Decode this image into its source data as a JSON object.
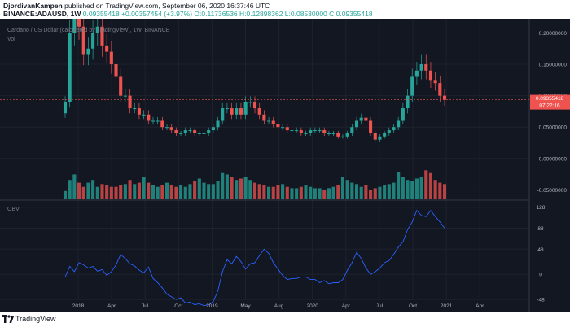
{
  "header": {
    "author": "DjordivanKampen",
    "published": "published on TradingView.com, September 06, 2020 16:37:46 UTC",
    "symbol": "BINANCE:ADAUSD, 1W",
    "last": "0.09355418",
    "change": "+0.00357454 (+3.97%)",
    "ohlc": "O:0.11736536 H:0.12898362 L:0.08530000 C:0.09355418"
  },
  "legend": {
    "title": "Cardano / US Dollar (calculated by TradingView), 1W, BINANCE",
    "vol": "Vol"
  },
  "obv_label": "OBV",
  "price_tag": "0.09355418",
  "countdown": "07:22:16",
  "footer": {
    "brand": "TradingView"
  },
  "colors": {
    "up": "#26a69a",
    "down": "#ef5350",
    "obv": "#2962ff",
    "bg": "#131722"
  },
  "chart_data": [
    {
      "type": "candlestick",
      "title": "Cardano / US Dollar (calculated by TradingView), 1W, BINANCE",
      "x_ticks": [
        "2018",
        "Apr",
        "Jul",
        "Oct",
        "2019",
        "May",
        "Aug",
        "2020",
        "Apr",
        "Jul",
        "Oct",
        "2021",
        "Apr"
      ],
      "y_ticks": [
        "0.20000000",
        "0.15000000",
        "0.10000000",
        "0.05000000",
        "0.00000000",
        "-0.05000000"
      ],
      "ylim": [
        -0.065,
        0.22
      ],
      "last_price": 0.09355418,
      "close": [
        0.09,
        0.2,
        0.23,
        0.21,
        0.165,
        0.175,
        0.2,
        0.21,
        0.18,
        0.17,
        0.15,
        0.13,
        0.1,
        0.1,
        0.08,
        0.08,
        0.07,
        0.07,
        0.06,
        0.06,
        0.06,
        0.05,
        0.05,
        0.045,
        0.04,
        0.04,
        0.045,
        0.045,
        0.04,
        0.04,
        0.04,
        0.045,
        0.05,
        0.06,
        0.08,
        0.08,
        0.07,
        0.08,
        0.07,
        0.09,
        0.09,
        0.08,
        0.07,
        0.06,
        0.06,
        0.055,
        0.05,
        0.05,
        0.045,
        0.045,
        0.045,
        0.04,
        0.04,
        0.045,
        0.045,
        0.045,
        0.04,
        0.04,
        0.04,
        0.035,
        0.035,
        0.04,
        0.05,
        0.06,
        0.065,
        0.06,
        0.04,
        0.03,
        0.035,
        0.04,
        0.045,
        0.05,
        0.06,
        0.08,
        0.1,
        0.13,
        0.14,
        0.15,
        0.14,
        0.125,
        0.12,
        0.1,
        0.09355418
      ]
    },
    {
      "type": "bar",
      "name": "Vol",
      "values": [
        0.3,
        0.7,
        0.9,
        0.6,
        0.45,
        0.6,
        0.7,
        0.45,
        0.55,
        0.5,
        0.45,
        0.45,
        0.5,
        0.55,
        0.7,
        0.55,
        0.6,
        0.8,
        0.6,
        0.5,
        0.45,
        0.5,
        0.6,
        0.5,
        0.45,
        0.5,
        0.45,
        0.55,
        0.65,
        0.75,
        0.6,
        0.55,
        0.55,
        0.65,
        0.95,
        0.9,
        0.8,
        0.7,
        0.75,
        0.8,
        0.7,
        0.6,
        0.55,
        0.5,
        0.45,
        0.45,
        0.5,
        0.55,
        0.45,
        0.4,
        0.4,
        0.45,
        0.5,
        0.45,
        0.4,
        0.4,
        0.35,
        0.4,
        0.45,
        0.5,
        0.8,
        0.7,
        0.6,
        0.55,
        0.45,
        0.5,
        0.35,
        0.4,
        0.45,
        0.5,
        0.55,
        0.6,
        1.0,
        0.8,
        0.7,
        0.65,
        0.75,
        0.8,
        1.05,
        0.95,
        0.7,
        0.6,
        0.55
      ]
    },
    {
      "type": "line",
      "name": "OBV",
      "y_ticks": [
        "128",
        "88",
        "48",
        "0",
        "-48"
      ],
      "values": [
        -5,
        15,
        5,
        22,
        18,
        12,
        15,
        6,
        9,
        -2,
        5,
        18,
        38,
        30,
        20,
        16,
        8,
        3,
        14,
        -8,
        -16,
        -26,
        -38,
        -43,
        -48,
        -45,
        -55,
        -53,
        -58,
        -56,
        -60,
        -58,
        -52,
        -32,
        5,
        28,
        20,
        34,
        24,
        10,
        20,
        22,
        36,
        48,
        40,
        22,
        10,
        -2,
        -10,
        -8,
        -8,
        -5,
        -5,
        -10,
        -10,
        -16,
        -12,
        -18,
        -16,
        -16,
        -10,
        8,
        22,
        42,
        30,
        12,
        0,
        5,
        12,
        22,
        26,
        38,
        52,
        62,
        85,
        100,
        122,
        112,
        110,
        122,
        110,
        100,
        88
      ]
    }
  ]
}
